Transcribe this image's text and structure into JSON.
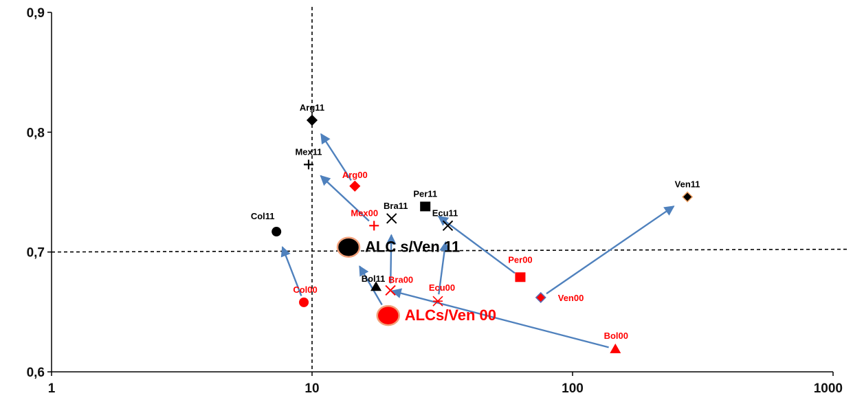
{
  "chart_data": {
    "type": "scatter",
    "title": "",
    "xlabel": "",
    "ylabel": "",
    "x_scale": "log",
    "xlim": [
      1,
      1000
    ],
    "ylim": [
      0.6,
      0.9
    ],
    "x_ticks": [
      {
        "value": 1,
        "label": "1"
      },
      {
        "value": 10,
        "label": "10"
      },
      {
        "value": 100,
        "label": "100"
      },
      {
        "value": 1000,
        "label": "1000"
      }
    ],
    "y_ticks": [
      {
        "value": 0.6,
        "label": "0,6"
      },
      {
        "value": 0.7,
        "label": "0,7"
      },
      {
        "value": 0.8,
        "label": "0,8"
      },
      {
        "value": 0.9,
        "label": "0,9"
      }
    ],
    "reference_lines": {
      "x": 10,
      "y": 0.7
    },
    "colors": {
      "year_2000": "#ff0000",
      "year_2011": "#000000",
      "arrow": "#4f81bd",
      "ven00_fill": "#ff0000",
      "ven00_edge": "#5b6fb5",
      "ven11_edge": "#f0a060"
    },
    "points": [
      {
        "label": "Arg00",
        "x": 14.6,
        "y": 0.755,
        "marker": "diamond",
        "group": "2000"
      },
      {
        "label": "Arg11",
        "x": 10.0,
        "y": 0.81,
        "marker": "diamond",
        "group": "2011"
      },
      {
        "label": "Mex00",
        "x": 17.3,
        "y": 0.722,
        "marker": "plus",
        "group": "2000"
      },
      {
        "label": "Mex11",
        "x": 9.7,
        "y": 0.773,
        "marker": "plus",
        "group": "2011"
      },
      {
        "label": "Col00",
        "x": 9.3,
        "y": 0.658,
        "marker": "circle",
        "group": "2000"
      },
      {
        "label": "Col11",
        "x": 7.3,
        "y": 0.717,
        "marker": "circle",
        "group": "2011"
      },
      {
        "label": "Bra00",
        "x": 20.0,
        "y": 0.668,
        "marker": "x",
        "group": "2000"
      },
      {
        "label": "Bra11",
        "x": 20.2,
        "y": 0.728,
        "marker": "x",
        "group": "2011"
      },
      {
        "label": "Bol00",
        "x": 146,
        "y": 0.619,
        "marker": "triangle",
        "group": "2000"
      },
      {
        "label": "Bol11",
        "x": 17.6,
        "y": 0.671,
        "marker": "triangle",
        "group": "2011"
      },
      {
        "label": "Ecu00",
        "x": 30.4,
        "y": 0.659,
        "marker": "asterisk",
        "group": "2000"
      },
      {
        "label": "Ecu11",
        "x": 33.2,
        "y": 0.722,
        "marker": "x",
        "group": "2011"
      },
      {
        "label": "Per00",
        "x": 63,
        "y": 0.679,
        "marker": "square",
        "group": "2000"
      },
      {
        "label": "Per11",
        "x": 27.2,
        "y": 0.738,
        "marker": "square",
        "group": "2011"
      },
      {
        "label": "Ven00",
        "x": 75.5,
        "y": 0.662,
        "marker": "diamond",
        "group": "2000"
      },
      {
        "label": "Ven11",
        "x": 276,
        "y": 0.746,
        "marker": "diamond",
        "group": "2011"
      }
    ],
    "averages": [
      {
        "label": "ALCs/Ven 00",
        "x": 19.6,
        "y": 0.647,
        "group": "2000"
      },
      {
        "label": "ALC s/Ven 11",
        "x": 13.8,
        "y": 0.704,
        "group": "2011"
      }
    ],
    "arrows": [
      {
        "from": "Arg00",
        "to": "Arg11"
      },
      {
        "from": "Mex00",
        "to": "Mex11"
      },
      {
        "from": "Col00",
        "to": "Col11"
      },
      {
        "from": "Bra00",
        "to": "Bra11"
      },
      {
        "from": "Bol00",
        "to": "Bol11"
      },
      {
        "from": "Ecu00",
        "to": "Ecu11"
      },
      {
        "from": "Per00",
        "to": "Per11"
      },
      {
        "from": "Ven00",
        "to": "Ven11"
      },
      {
        "from": "ALCs/Ven 00",
        "to": "ALC s/Ven 11"
      }
    ]
  }
}
